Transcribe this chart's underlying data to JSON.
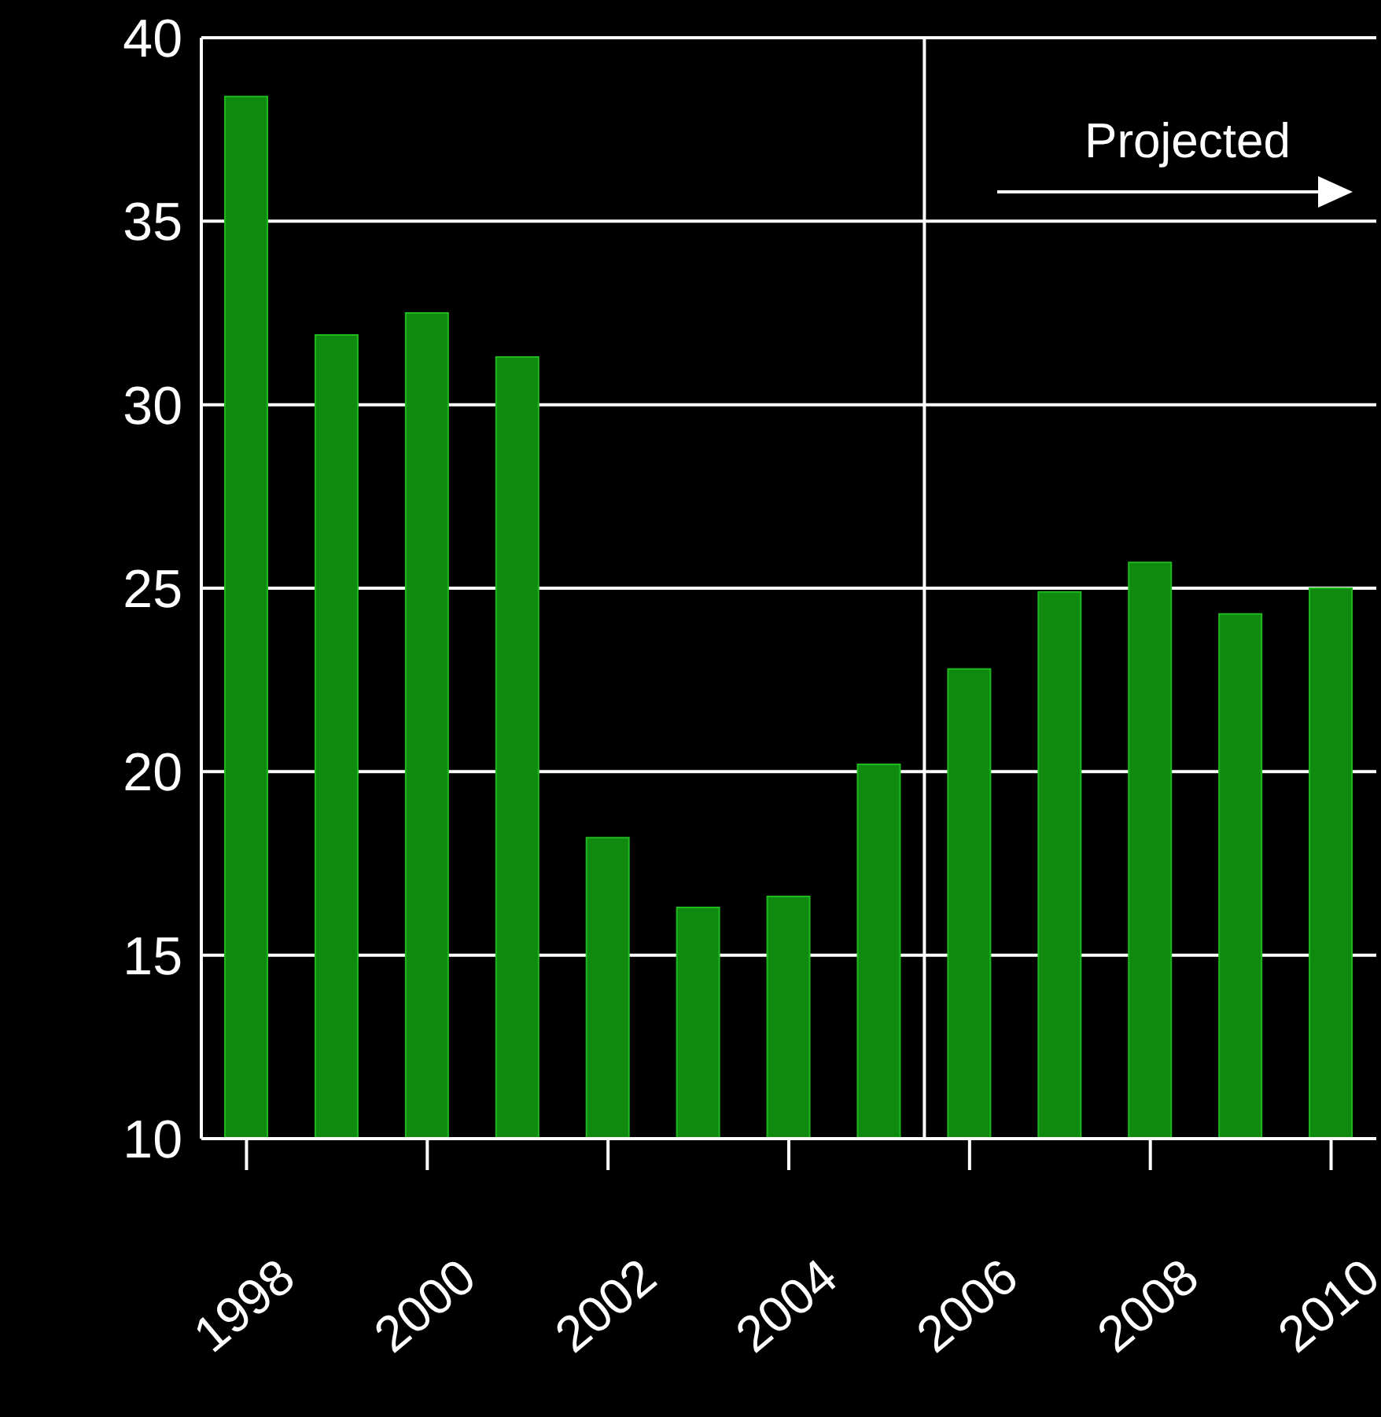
{
  "chart_data": {
    "type": "bar",
    "x": [
      1998,
      1999,
      2000,
      2001,
      2002,
      2003,
      2004,
      2005,
      2006,
      2007,
      2008,
      2009,
      2010
    ],
    "values": [
      38.4,
      31.9,
      32.5,
      31.3,
      18.2,
      16.3,
      16.6,
      20.2,
      22.8,
      24.9,
      25.7,
      24.3,
      25.0
    ],
    "color": "#0f8a0f",
    "xlim": [
      1997.5,
      2010.5
    ],
    "xticks": [
      1998,
      2000,
      2002,
      2004,
      2006,
      2008,
      2010
    ],
    "ylim": [
      10,
      40
    ],
    "yticks": [
      10,
      15,
      20,
      25,
      30,
      35,
      40
    ],
    "grid": "y",
    "ref_lines": [
      {
        "axis": "x",
        "value": 2005.5,
        "color": "#ffffff"
      }
    ],
    "annotations": [
      "Projected"
    ]
  }
}
